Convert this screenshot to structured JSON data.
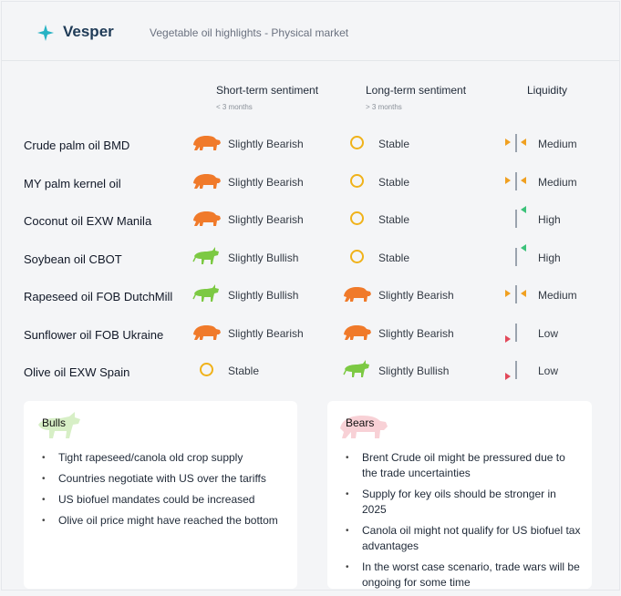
{
  "brand": "Vesper",
  "subtitle": "Vegetable oil highlights - Physical market",
  "columns": {
    "short": "Short-term sentiment",
    "short_sub": "< 3 months",
    "long": "Long-term sentiment",
    "long_sub": "> 3 months",
    "liq": "Liquidity"
  },
  "rows": [
    {
      "label": "Crude palm oil BMD",
      "short": "Slightly Bearish",
      "short_icon": "bear-icon",
      "long": "Stable",
      "long_icon": "circle-icon",
      "liq": "Medium",
      "liq_icon": "medium-arrows-icon"
    },
    {
      "label": "MY palm kernel oil",
      "short": "Slightly Bearish",
      "short_icon": "bear-icon",
      "long": "Stable",
      "long_icon": "circle-icon",
      "liq": "Medium",
      "liq_icon": "medium-arrows-icon"
    },
    {
      "label": "Coconut oil EXW Manila",
      "short": "Slightly Bearish",
      "short_icon": "bear-icon",
      "long": "Stable",
      "long_icon": "circle-icon",
      "liq": "High",
      "liq_icon": "high-arrow-icon"
    },
    {
      "label": "Soybean oil CBOT",
      "short": "Slightly Bullish",
      "short_icon": "bull-icon",
      "long": "Stable",
      "long_icon": "circle-icon",
      "liq": "High",
      "liq_icon": "high-arrow-icon"
    },
    {
      "label": "Rapeseed oil FOB DutchMill",
      "short": "Slightly Bullish",
      "short_icon": "bull-icon",
      "long": "Slightly Bearish",
      "long_icon": "bear-icon",
      "liq": "Medium",
      "liq_icon": "medium-arrows-icon"
    },
    {
      "label": "Sunflower oil FOB Ukraine",
      "short": "Slightly Bearish",
      "short_icon": "bear-icon",
      "long": "Slightly Bearish",
      "long_icon": "bear-icon",
      "liq": "Low",
      "liq_icon": "low-arrow-icon"
    },
    {
      "label": "Olive oil EXW Spain",
      "short": "Stable",
      "short_icon": "circle-icon",
      "long": "Slightly Bullish",
      "long_icon": "bull-icon",
      "liq": "Low",
      "liq_icon": "low-arrow-icon"
    }
  ],
  "bulls": {
    "title": "Bulls",
    "items": [
      "Tight rapeseed/canola old crop supply",
      "Countries negotiate with US over the tariffs",
      "US biofuel mandates could be increased",
      "Olive oil price might have reached the bottom"
    ]
  },
  "bears": {
    "title": "Bears",
    "items": [
      "Brent Crude oil might be pressured due to the trade uncertainties",
      "Supply for key oils should be stronger in 2025",
      "Canola oil might not qualify for US biofuel tax advantages",
      "In the worst case scenario, trade wars will be ongoing for some time"
    ]
  },
  "colors": {
    "bear": "#f07a2a",
    "bull": "#7cc943",
    "stable": "#f0b21a",
    "liq_medium": "#f0a020",
    "liq_high": "#3cc27a",
    "liq_low": "#e2495a"
  }
}
